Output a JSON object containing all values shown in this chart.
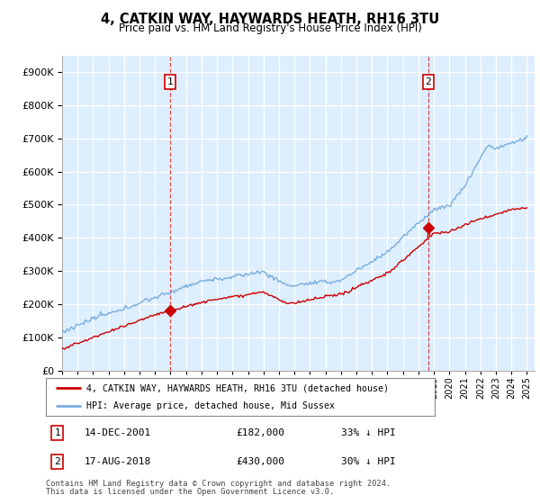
{
  "title": "4, CATKIN WAY, HAYWARDS HEATH, RH16 3TU",
  "subtitle": "Price paid vs. HM Land Registry's House Price Index (HPI)",
  "legend_line1": "4, CATKIN WAY, HAYWARDS HEATH, RH16 3TU (detached house)",
  "legend_line2": "HPI: Average price, detached house, Mid Sussex",
  "transaction1_date": "14-DEC-2001",
  "transaction1_price": 182000,
  "transaction1_text": "33% ↓ HPI",
  "transaction1_year": 2001.96,
  "transaction2_date": "17-AUG-2018",
  "transaction2_price": 430000,
  "transaction2_text": "30% ↓ HPI",
  "transaction2_year": 2018.63,
  "footnote1": "Contains HM Land Registry data © Crown copyright and database right 2024.",
  "footnote2": "This data is licensed under the Open Government Licence v3.0.",
  "red_color": "#cc0000",
  "blue_color": "#7aade0",
  "background": "#ddeeff",
  "plot_bg": "#ddeeff",
  "grid_color": "#ffffff",
  "ylim": [
    0,
    950000
  ],
  "yticks": [
    0,
    100000,
    200000,
    300000,
    400000,
    500000,
    600000,
    700000,
    800000,
    900000
  ],
  "xlim_start": 1995,
  "xlim_end": 2025.5
}
